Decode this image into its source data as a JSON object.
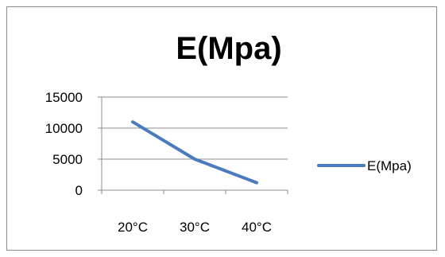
{
  "chart_data": {
    "type": "line",
    "title": "E(Mpa)",
    "xlabel": "",
    "ylabel": "",
    "categories": [
      "20°C",
      "30°C",
      "40°C"
    ],
    "series": [
      {
        "name": "E(Mpa)",
        "values": [
          11000,
          5000,
          1200
        ],
        "color": "#4a7bbf"
      }
    ],
    "ylim": [
      0,
      15000
    ],
    "yticks": [
      "0",
      "5000",
      "10000",
      "15000"
    ],
    "grid": true,
    "legend": "right"
  }
}
